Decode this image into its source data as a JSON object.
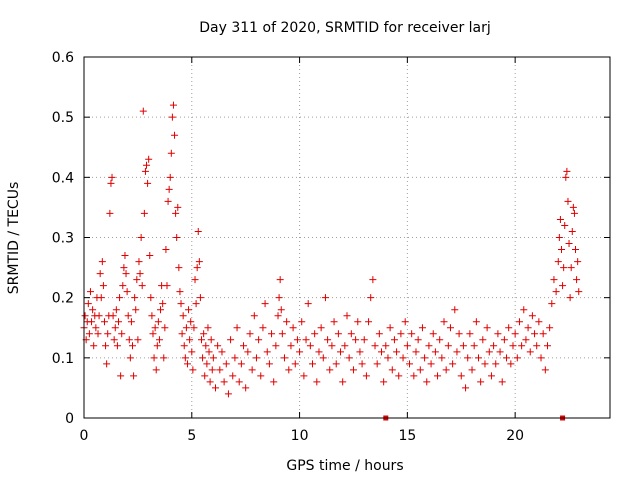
{
  "chart_data": {
    "type": "scatter",
    "title": "Day 311 of 2020, SRMTID for receiver larj",
    "xlabel": "GPS time / hours",
    "ylabel": "SRMTID / TECUs",
    "xlim": [
      0,
      24.4
    ],
    "ylim": [
      0,
      0.6
    ],
    "xticks": [
      0,
      5,
      10,
      15,
      20
    ],
    "yticks": [
      0,
      0.1,
      0.2,
      0.3,
      0.4,
      0.5,
      0.6
    ],
    "xtick_labels": [
      "0",
      "5",
      "10",
      "15",
      "20"
    ],
    "ytick_labels": [
      "0",
      "0.1",
      "0.2",
      "0.3",
      "0.4",
      "0.5",
      "0.6"
    ],
    "grid": true,
    "marker": "plus",
    "color": "#e00000",
    "series": [
      {
        "name": "SRMTID",
        "points": [
          [
            0.0,
            0.15
          ],
          [
            0.05,
            0.17
          ],
          [
            0.1,
            0.13
          ],
          [
            0.15,
            0.16
          ],
          [
            0.2,
            0.19
          ],
          [
            0.25,
            0.14
          ],
          [
            0.3,
            0.21
          ],
          [
            0.35,
            0.16
          ],
          [
            0.4,
            0.18
          ],
          [
            0.45,
            0.12
          ],
          [
            0.5,
            0.17
          ],
          [
            0.55,
            0.15
          ],
          [
            0.6,
            0.2
          ],
          [
            0.65,
            0.14
          ],
          [
            0.7,
            0.17
          ],
          [
            0.75,
            0.24
          ],
          [
            0.8,
            0.2
          ],
          [
            0.85,
            0.26
          ],
          [
            0.9,
            0.22
          ],
          [
            0.95,
            0.16
          ],
          [
            1.0,
            0.12
          ],
          [
            1.05,
            0.09
          ],
          [
            1.1,
            0.14
          ],
          [
            1.15,
            0.17
          ],
          [
            1.2,
            0.34
          ],
          [
            1.25,
            0.39
          ],
          [
            1.3,
            0.4
          ],
          [
            1.35,
            0.17
          ],
          [
            1.4,
            0.13
          ],
          [
            1.45,
            0.15
          ],
          [
            1.5,
            0.18
          ],
          [
            1.55,
            0.12
          ],
          [
            1.6,
            0.16
          ],
          [
            1.65,
            0.2
          ],
          [
            1.7,
            0.07
          ],
          [
            1.75,
            0.14
          ],
          [
            1.8,
            0.22
          ],
          [
            1.85,
            0.25
          ],
          [
            1.9,
            0.27
          ],
          [
            1.95,
            0.24
          ],
          [
            2.0,
            0.21
          ],
          [
            2.05,
            0.17
          ],
          [
            2.1,
            0.13
          ],
          [
            2.15,
            0.1
          ],
          [
            2.2,
            0.16
          ],
          [
            2.25,
            0.12
          ],
          [
            2.3,
            0.07
          ],
          [
            2.35,
            0.2
          ],
          [
            2.4,
            0.18
          ],
          [
            2.45,
            0.23
          ],
          [
            2.5,
            0.13
          ],
          [
            2.55,
            0.26
          ],
          [
            2.6,
            0.24
          ],
          [
            2.65,
            0.3
          ],
          [
            2.7,
            0.22
          ],
          [
            2.75,
            0.51
          ],
          [
            2.8,
            0.34
          ],
          [
            2.85,
            0.41
          ],
          [
            2.9,
            0.42
          ],
          [
            2.95,
            0.39
          ],
          [
            3.0,
            0.43
          ],
          [
            3.05,
            0.27
          ],
          [
            3.1,
            0.2
          ],
          [
            3.15,
            0.17
          ],
          [
            3.2,
            0.14
          ],
          [
            3.25,
            0.1
          ],
          [
            3.3,
            0.15
          ],
          [
            3.35,
            0.08
          ],
          [
            3.4,
            0.12
          ],
          [
            3.45,
            0.16
          ],
          [
            3.5,
            0.13
          ],
          [
            3.55,
            0.18
          ],
          [
            3.6,
            0.22
          ],
          [
            3.65,
            0.19
          ],
          [
            3.7,
            0.1
          ],
          [
            3.75,
            0.15
          ],
          [
            3.8,
            0.28
          ],
          [
            3.85,
            0.22
          ],
          [
            3.9,
            0.36
          ],
          [
            3.95,
            0.38
          ],
          [
            4.0,
            0.4
          ],
          [
            4.05,
            0.44
          ],
          [
            4.1,
            0.5
          ],
          [
            4.15,
            0.52
          ],
          [
            4.2,
            0.47
          ],
          [
            4.25,
            0.34
          ],
          [
            4.3,
            0.3
          ],
          [
            4.35,
            0.35
          ],
          [
            4.4,
            0.25
          ],
          [
            4.45,
            0.21
          ],
          [
            4.5,
            0.19
          ],
          [
            4.55,
            0.14
          ],
          [
            4.6,
            0.17
          ],
          [
            4.65,
            0.12
          ],
          [
            4.7,
            0.1
          ],
          [
            4.75,
            0.15
          ],
          [
            4.8,
            0.09
          ],
          [
            4.85,
            0.18
          ],
          [
            4.9,
            0.13
          ],
          [
            4.95,
            0.16
          ],
          [
            5.0,
            0.11
          ],
          [
            5.05,
            0.08
          ],
          [
            5.1,
            0.15
          ],
          [
            5.15,
            0.23
          ],
          [
            5.2,
            0.19
          ],
          [
            5.25,
            0.25
          ],
          [
            5.3,
            0.31
          ],
          [
            5.35,
            0.26
          ],
          [
            5.4,
            0.2
          ],
          [
            5.45,
            0.13
          ],
          [
            5.5,
            0.1
          ],
          [
            5.55,
            0.14
          ],
          [
            5.6,
            0.07
          ],
          [
            5.65,
            0.12
          ],
          [
            5.7,
            0.09
          ],
          [
            5.75,
            0.15
          ],
          [
            5.8,
            0.11
          ],
          [
            5.85,
            0.06
          ],
          [
            5.9,
            0.13
          ],
          [
            5.95,
            0.08
          ],
          [
            6.0,
            0.1
          ],
          [
            6.1,
            0.05
          ],
          [
            6.2,
            0.12
          ],
          [
            6.3,
            0.08
          ],
          [
            6.4,
            0.11
          ],
          [
            6.5,
            0.06
          ],
          [
            6.6,
            0.09
          ],
          [
            6.7,
            0.04
          ],
          [
            6.8,
            0.13
          ],
          [
            6.9,
            0.07
          ],
          [
            7.0,
            0.1
          ],
          [
            7.1,
            0.15
          ],
          [
            7.2,
            0.06
          ],
          [
            7.3,
            0.09
          ],
          [
            7.4,
            0.12
          ],
          [
            7.5,
            0.05
          ],
          [
            7.6,
            0.11
          ],
          [
            7.7,
            0.14
          ],
          [
            7.8,
            0.08
          ],
          [
            7.9,
            0.17
          ],
          [
            8.0,
            0.1
          ],
          [
            8.1,
            0.13
          ],
          [
            8.2,
            0.07
          ],
          [
            8.3,
            0.15
          ],
          [
            8.4,
            0.19
          ],
          [
            8.5,
            0.11
          ],
          [
            8.6,
            0.09
          ],
          [
            8.7,
            0.14
          ],
          [
            8.8,
            0.06
          ],
          [
            8.9,
            0.12
          ],
          [
            9.0,
            0.17
          ],
          [
            9.05,
            0.2
          ],
          [
            9.1,
            0.23
          ],
          [
            9.15,
            0.18
          ],
          [
            9.2,
            0.14
          ],
          [
            9.3,
            0.1
          ],
          [
            9.4,
            0.16
          ],
          [
            9.5,
            0.08
          ],
          [
            9.6,
            0.12
          ],
          [
            9.7,
            0.15
          ],
          [
            9.8,
            0.09
          ],
          [
            9.9,
            0.13
          ],
          [
            10.0,
            0.11
          ],
          [
            10.1,
            0.16
          ],
          [
            10.2,
            0.07
          ],
          [
            10.3,
            0.13
          ],
          [
            10.4,
            0.19
          ],
          [
            10.5,
            0.12
          ],
          [
            10.6,
            0.09
          ],
          [
            10.7,
            0.14
          ],
          [
            10.8,
            0.06
          ],
          [
            10.9,
            0.11
          ],
          [
            11.0,
            0.15
          ],
          [
            11.1,
            0.1
          ],
          [
            11.2,
            0.2
          ],
          [
            11.3,
            0.13
          ],
          [
            11.4,
            0.08
          ],
          [
            11.5,
            0.12
          ],
          [
            11.6,
            0.16
          ],
          [
            11.7,
            0.09
          ],
          [
            11.8,
            0.14
          ],
          [
            11.9,
            0.11
          ],
          [
            12.0,
            0.06
          ],
          [
            12.1,
            0.12
          ],
          [
            12.2,
            0.17
          ],
          [
            12.3,
            0.1
          ],
          [
            12.4,
            0.14
          ],
          [
            12.5,
            0.08
          ],
          [
            12.6,
            0.13
          ],
          [
            12.7,
            0.16
          ],
          [
            12.8,
            0.11
          ],
          [
            12.9,
            0.09
          ],
          [
            13.0,
            0.13
          ],
          [
            13.1,
            0.07
          ],
          [
            13.2,
            0.16
          ],
          [
            13.3,
            0.2
          ],
          [
            13.4,
            0.23
          ],
          [
            13.5,
            0.12
          ],
          [
            13.6,
            0.09
          ],
          [
            13.7,
            0.14
          ],
          [
            13.8,
            0.11
          ],
          [
            13.9,
            0.06
          ],
          [
            14.0,
            0.12
          ],
          [
            14.1,
            0.1
          ],
          [
            14.2,
            0.15
          ],
          [
            14.3,
            0.08
          ],
          [
            14.4,
            0.13
          ],
          [
            14.5,
            0.11
          ],
          [
            14.6,
            0.07
          ],
          [
            14.7,
            0.14
          ],
          [
            14.8,
            0.1
          ],
          [
            14.9,
            0.16
          ],
          [
            15.0,
            0.12
          ],
          [
            15.1,
            0.09
          ],
          [
            15.2,
            0.14
          ],
          [
            15.3,
            0.07
          ],
          [
            15.4,
            0.11
          ],
          [
            15.5,
            0.13
          ],
          [
            15.6,
            0.08
          ],
          [
            15.7,
            0.15
          ],
          [
            15.8,
            0.1
          ],
          [
            15.9,
            0.06
          ],
          [
            16.0,
            0.12
          ],
          [
            16.1,
            0.09
          ],
          [
            16.2,
            0.14
          ],
          [
            16.3,
            0.11
          ],
          [
            16.4,
            0.07
          ],
          [
            16.5,
            0.13
          ],
          [
            16.6,
            0.1
          ],
          [
            16.7,
            0.16
          ],
          [
            16.8,
            0.08
          ],
          [
            16.9,
            0.12
          ],
          [
            17.0,
            0.15
          ],
          [
            17.1,
            0.09
          ],
          [
            17.2,
            0.18
          ],
          [
            17.3,
            0.11
          ],
          [
            17.4,
            0.14
          ],
          [
            17.5,
            0.07
          ],
          [
            17.6,
            0.12
          ],
          [
            17.7,
            0.05
          ],
          [
            17.8,
            0.1
          ],
          [
            17.9,
            0.14
          ],
          [
            18.0,
            0.08
          ],
          [
            18.1,
            0.12
          ],
          [
            18.2,
            0.16
          ],
          [
            18.3,
            0.1
          ],
          [
            18.4,
            0.06
          ],
          [
            18.5,
            0.13
          ],
          [
            18.6,
            0.09
          ],
          [
            18.7,
            0.15
          ],
          [
            18.8,
            0.11
          ],
          [
            18.9,
            0.07
          ],
          [
            19.0,
            0.12
          ],
          [
            19.1,
            0.09
          ],
          [
            19.2,
            0.14
          ],
          [
            19.3,
            0.11
          ],
          [
            19.4,
            0.06
          ],
          [
            19.5,
            0.13
          ],
          [
            19.6,
            0.1
          ],
          [
            19.7,
            0.15
          ],
          [
            19.8,
            0.09
          ],
          [
            19.9,
            0.12
          ],
          [
            20.0,
            0.14
          ],
          [
            20.1,
            0.1
          ],
          [
            20.2,
            0.16
          ],
          [
            20.3,
            0.12
          ],
          [
            20.4,
            0.18
          ],
          [
            20.5,
            0.13
          ],
          [
            20.6,
            0.15
          ],
          [
            20.7,
            0.11
          ],
          [
            20.8,
            0.17
          ],
          [
            20.9,
            0.14
          ],
          [
            21.0,
            0.12
          ],
          [
            21.1,
            0.16
          ],
          [
            21.2,
            0.1
          ],
          [
            21.3,
            0.14
          ],
          [
            21.4,
            0.08
          ],
          [
            21.5,
            0.12
          ],
          [
            21.6,
            0.15
          ],
          [
            21.7,
            0.19
          ],
          [
            21.8,
            0.23
          ],
          [
            21.9,
            0.21
          ],
          [
            22.0,
            0.26
          ],
          [
            22.05,
            0.3
          ],
          [
            22.1,
            0.33
          ],
          [
            22.15,
            0.28
          ],
          [
            22.2,
            0.22
          ],
          [
            22.25,
            0.25
          ],
          [
            22.3,
            0.32
          ],
          [
            22.35,
            0.4
          ],
          [
            22.4,
            0.41
          ],
          [
            22.45,
            0.36
          ],
          [
            22.5,
            0.29
          ],
          [
            22.55,
            0.2
          ],
          [
            22.6,
            0.25
          ],
          [
            22.65,
            0.31
          ],
          [
            22.7,
            0.35
          ],
          [
            22.75,
            0.34
          ],
          [
            22.8,
            0.28
          ],
          [
            22.85,
            0.23
          ],
          [
            22.9,
            0.26
          ],
          [
            22.95,
            0.21
          ]
        ]
      }
    ],
    "data_gap_markers_x": [
      14.0,
      22.2
    ]
  }
}
